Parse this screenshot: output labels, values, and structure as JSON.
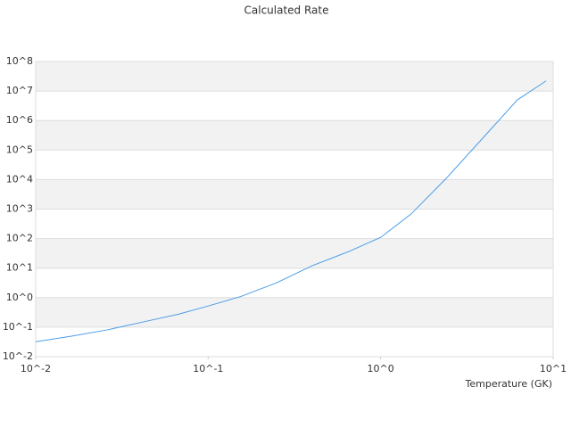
{
  "chart_data": {
    "type": "line",
    "title": "Calculated Rate",
    "x_label": "Temperature (GK)",
    "x": [
      0.01,
      0.016,
      0.026,
      0.042,
      0.068,
      0.1,
      0.155,
      0.25,
      0.4,
      0.65,
      1,
      1.5,
      2.4,
      3.9,
      6.2,
      9.1
    ],
    "series": [
      {
        "color": "#4a9de8",
        "values": [
          0.032,
          0.049,
          0.081,
          0.15,
          0.28,
          0.52,
          1.1,
          3.2,
          12,
          36,
          110,
          680,
          11000,
          250000,
          5000000,
          22000000
        ]
      }
    ],
    "xlim": [
      0.01,
      10
    ],
    "ylim": [
      0.01,
      100000000
    ],
    "xscale": "log",
    "yscale": "log",
    "xticks": [
      {
        "value": 0.01,
        "label": "10^-2"
      },
      {
        "value": 0.1,
        "label": "10^-1"
      },
      {
        "value": 1,
        "label": "10^0"
      },
      {
        "value": 10,
        "label": "10^1"
      }
    ],
    "yticks": [
      {
        "value": 0.01,
        "label": "10^-2"
      },
      {
        "value": 0.1,
        "label": "10^-1"
      },
      {
        "value": 1,
        "label": "10^0"
      },
      {
        "value": 10,
        "label": "10^1"
      },
      {
        "value": 100,
        "label": "10^2"
      },
      {
        "value": 1000,
        "label": "10^3"
      },
      {
        "value": 10000,
        "label": "10^4"
      },
      {
        "value": 100000,
        "label": "10^5"
      },
      {
        "value": 1000000,
        "label": "10^6"
      },
      {
        "value": 10000000,
        "label": "10^7"
      },
      {
        "value": 100000000,
        "label": "10^8"
      }
    ],
    "grid": true,
    "band_color": "#f2f2f2"
  }
}
